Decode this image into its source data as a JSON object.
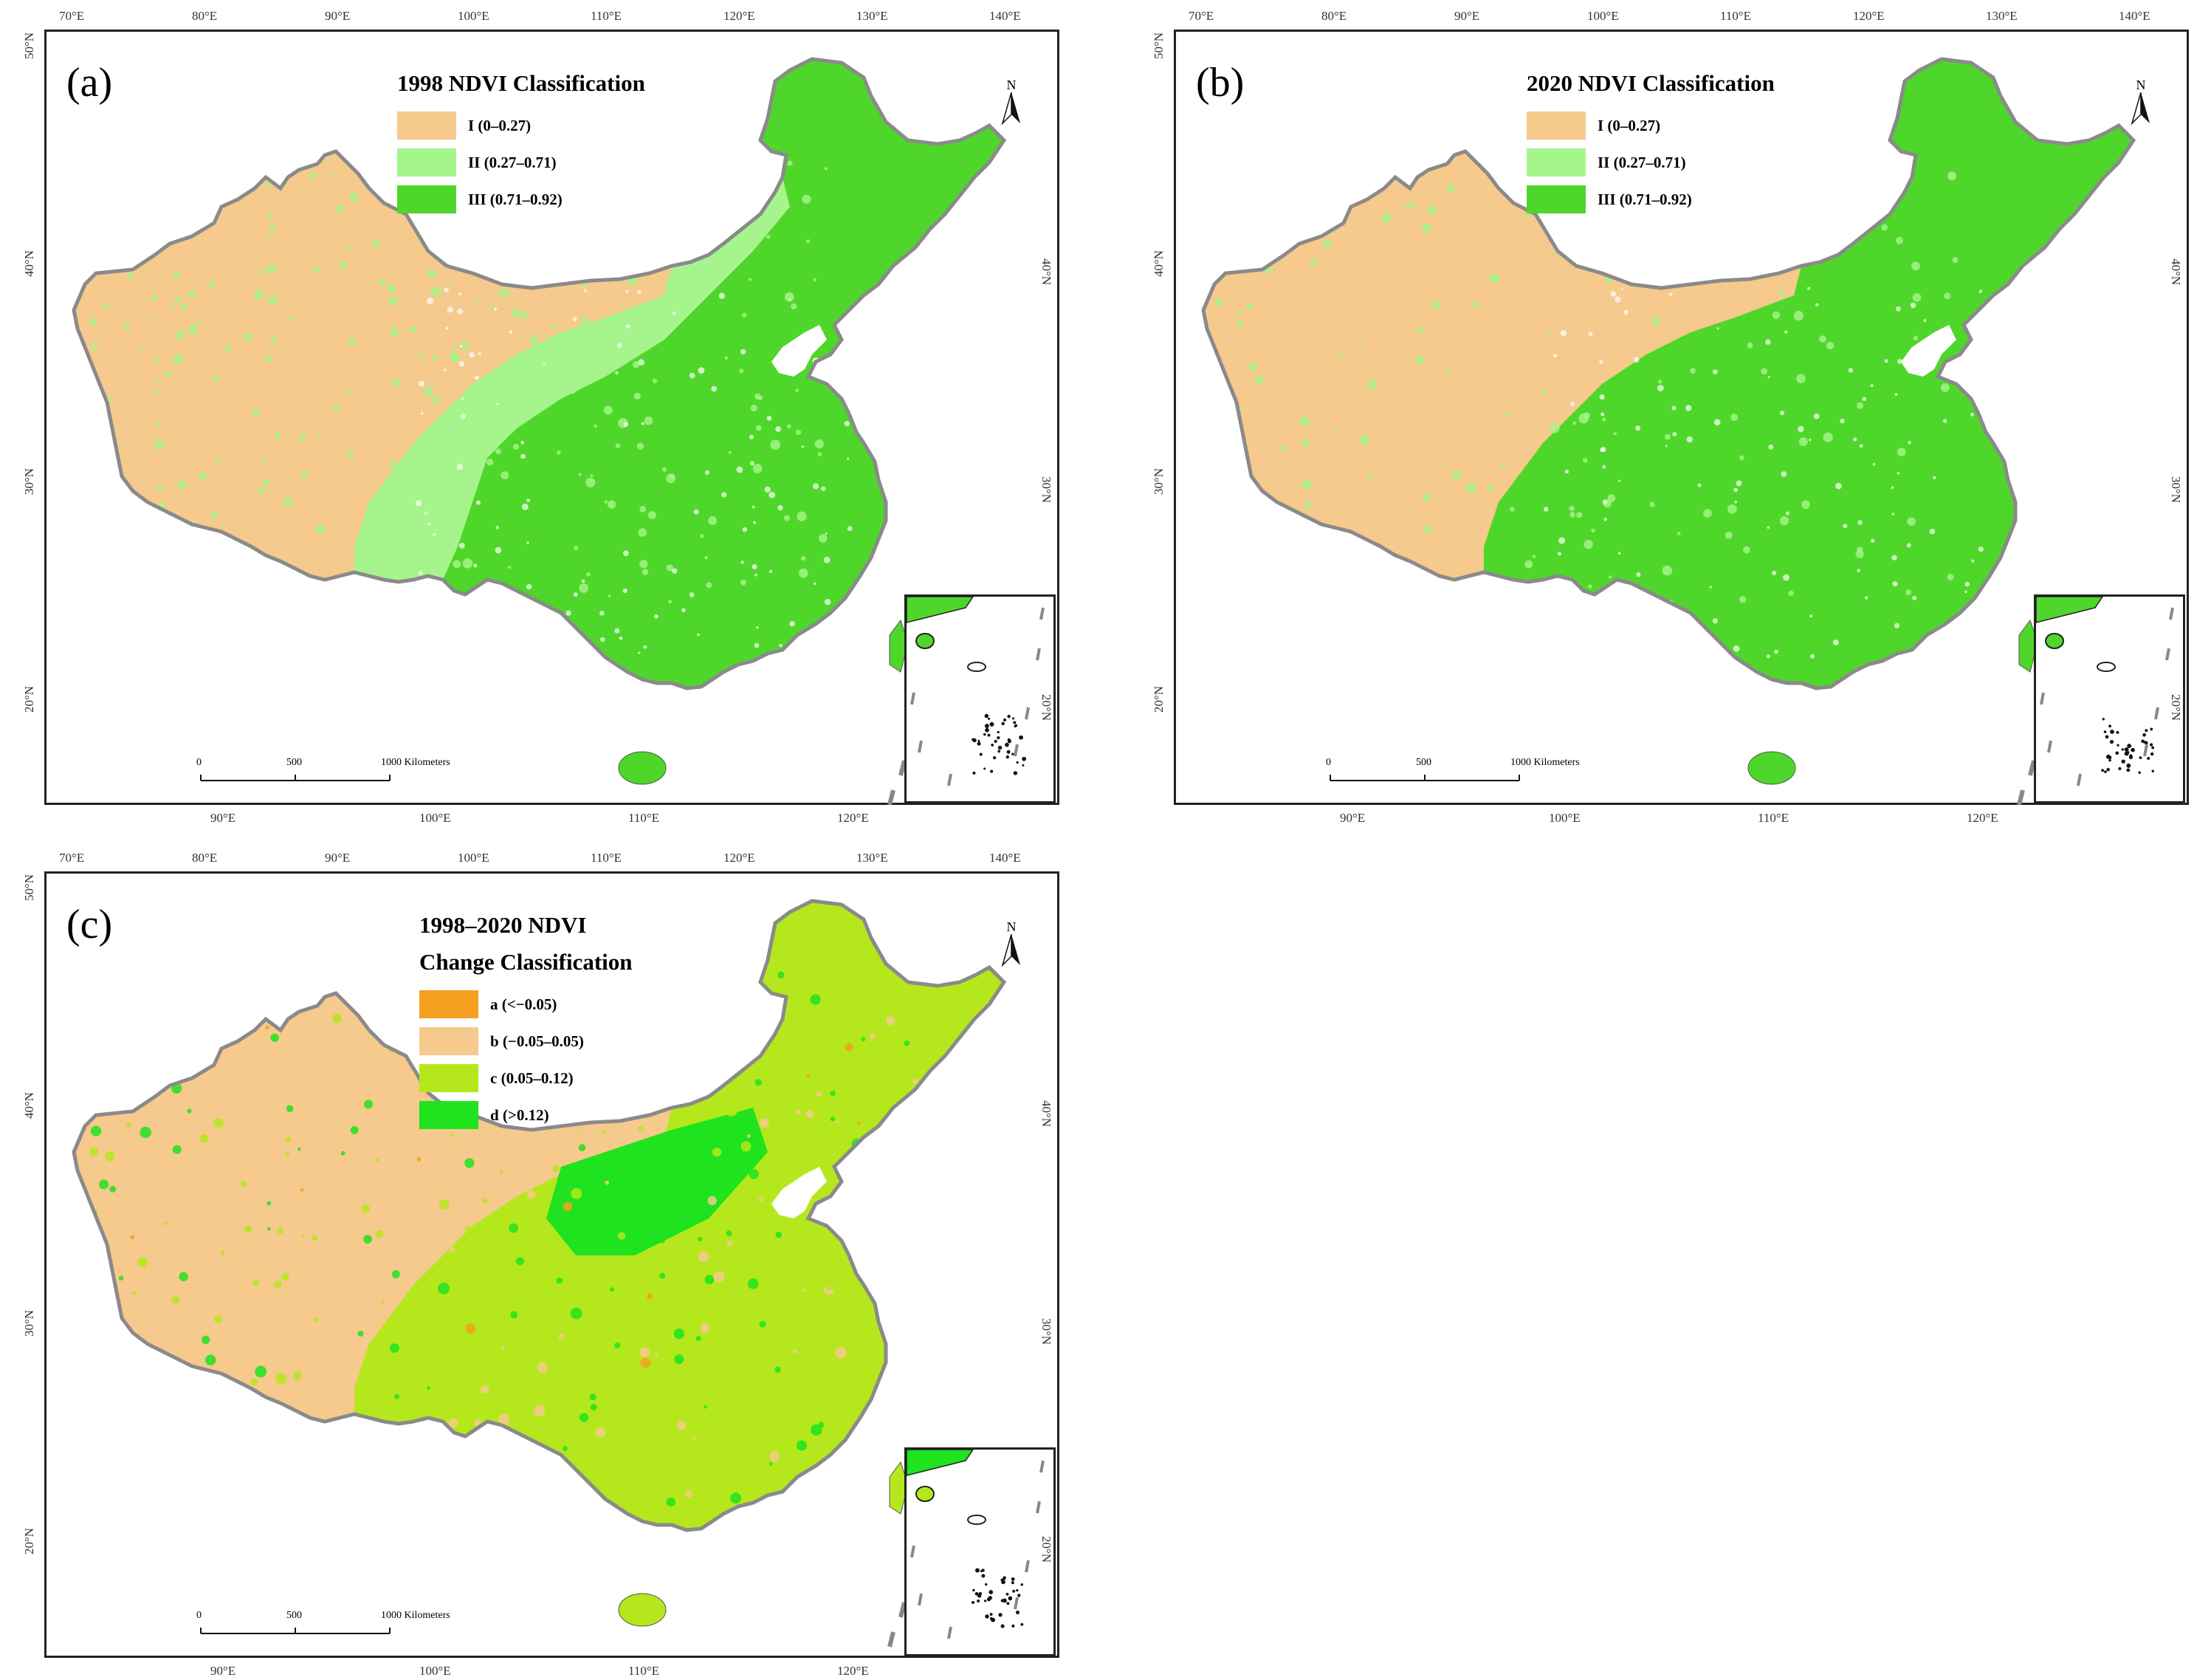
{
  "panels": [
    {
      "label": "(a)",
      "legend_title_lines": [
        "1998 NDVI Classification"
      ],
      "legend": [
        {
          "label": "I (0–0.27)",
          "color": "#f6c98c"
        },
        {
          "label": "II (0.27–0.71)",
          "color": "#a6f58c"
        },
        {
          "label": "III (0.71–0.92)",
          "color": "#4fd62a"
        }
      ]
    },
    {
      "label": "(b)",
      "legend_title_lines": [
        "2020 NDVI Classification"
      ],
      "legend": [
        {
          "label": "I (0–0.27)",
          "color": "#f6c98c"
        },
        {
          "label": "II (0.27–0.71)",
          "color": "#a6f58c"
        },
        {
          "label": "III (0.71–0.92)",
          "color": "#4fd62a"
        }
      ]
    },
    {
      "label": "(c)",
      "legend_title_lines": [
        "1998–2020 NDVI",
        "Change Classification"
      ],
      "legend": [
        {
          "label": "a (<−0.05)",
          "color": "#f5a020"
        },
        {
          "label": "b (−0.05–0.05)",
          "color": "#f6c98c"
        },
        {
          "label": "c (0.05–0.12)",
          "color": "#b4e81c"
        },
        {
          "label": "d (>0.12)",
          "color": "#1ee31e"
        }
      ]
    }
  ],
  "top_ticks": [
    "70°E",
    "80°E",
    "90°E",
    "100°E",
    "110°E",
    "120°E",
    "130°E",
    "140°E"
  ],
  "bottom_ticks": [
    "90°E",
    "100°E",
    "110°E",
    "120°E"
  ],
  "lat_ticks": [
    "50°N",
    "40°N",
    "30°N",
    "20°N"
  ],
  "right_lat_ticks": [
    "40°N",
    "30°N",
    "20°N"
  ],
  "scale": {
    "zero": "0",
    "mid": "500",
    "end": "1000 Kilometers"
  },
  "north_symbol": "N",
  "colors": {
    "border": "#8a8a8a",
    "frame": "#222222"
  }
}
